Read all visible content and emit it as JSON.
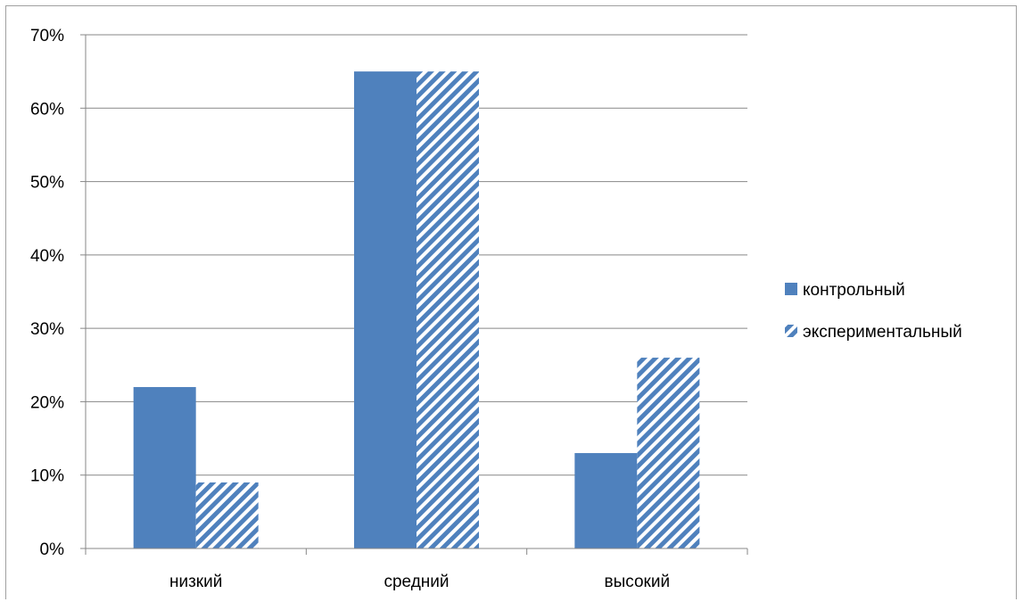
{
  "chart_data": {
    "type": "bar",
    "categories": [
      "низкий",
      "средний",
      "высокий"
    ],
    "series": [
      {
        "name": "контрольный",
        "values": [
          22,
          65,
          13
        ],
        "color": "#4f81bd",
        "pattern": "solid"
      },
      {
        "name": "экспериментальный",
        "values": [
          9,
          65,
          26
        ],
        "color": "#4f81bd",
        "pattern": "diagonal-stripes"
      }
    ],
    "ylim": [
      0,
      70
    ],
    "yticks": [
      0,
      10,
      20,
      30,
      40,
      50,
      60,
      70
    ],
    "ytick_labels": [
      "0%",
      "10%",
      "20%",
      "30%",
      "40%",
      "50%",
      "60%",
      "70%"
    ],
    "value_unit": "%",
    "grid": true,
    "legend_position": "right",
    "title": "",
    "xlabel": "",
    "ylabel": ""
  }
}
